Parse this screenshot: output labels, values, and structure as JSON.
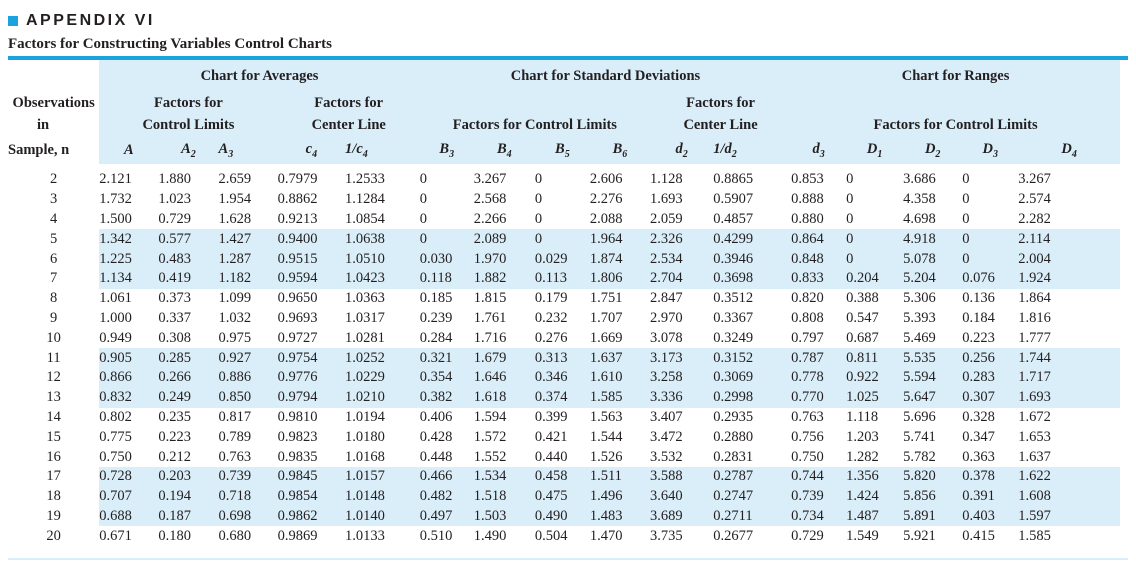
{
  "appendix": "APPENDIX VI",
  "title": "Factors for Constructing Variables Control Charts",
  "colors": {
    "accent": "#1aa3dc",
    "shade": "#d9eef9"
  },
  "groups": {
    "averages": "Chart for Averages",
    "std_devs": "Chart for Standard Deviations",
    "ranges": "Chart for Ranges"
  },
  "subgroups": {
    "obs_line1": "Observations",
    "obs_line2": "in",
    "avg_control_1": "Factors for",
    "avg_control_2": "Control Limits",
    "avg_center_1": "Factors for",
    "avg_center_2": "Center Line",
    "sd_control": "Factors for Control Limits",
    "sd_center_1": "Factors for",
    "sd_center_2": "Center Line",
    "r_control": "Factors for Control Limits"
  },
  "sample_label": "Sample, n",
  "symbols": {
    "A": "A",
    "A2": "A",
    "A3": "A",
    "c4": "c",
    "inv_c4": "1/c",
    "B3": "B",
    "B4": "B",
    "B5": "B",
    "B6": "B",
    "d2": "d",
    "inv_d2": "1/d",
    "d3": "d",
    "D1": "D",
    "D2": "D",
    "D3": "D",
    "D4": "D"
  },
  "symbol_subs": {
    "A2": "2",
    "A3": "3",
    "c4": "4",
    "inv_c4": "4",
    "B3": "3",
    "B4": "4",
    "B5": "5",
    "B6": "6",
    "d2": "2",
    "inv_d2": "2",
    "d3": "3",
    "D1": "1",
    "D2": "2",
    "D3": "3",
    "D4": "4"
  },
  "rows": [
    [
      "2",
      "2.121",
      "1.880",
      "2.659",
      "0.7979",
      "1.2533",
      "0",
      "3.267",
      "0",
      "2.606",
      "1.128",
      "0.8865",
      "0.853",
      "0",
      "3.686",
      "0",
      "3.267"
    ],
    [
      "3",
      "1.732",
      "1.023",
      "1.954",
      "0.8862",
      "1.1284",
      "0",
      "2.568",
      "0",
      "2.276",
      "1.693",
      "0.5907",
      "0.888",
      "0",
      "4.358",
      "0",
      "2.574"
    ],
    [
      "4",
      "1.500",
      "0.729",
      "1.628",
      "0.9213",
      "1.0854",
      "0",
      "2.266",
      "0",
      "2.088",
      "2.059",
      "0.4857",
      "0.880",
      "0",
      "4.698",
      "0",
      "2.282"
    ],
    [
      "5",
      "1.342",
      "0.577",
      "1.427",
      "0.9400",
      "1.0638",
      "0",
      "2.089",
      "0",
      "1.964",
      "2.326",
      "0.4299",
      "0.864",
      "0",
      "4.918",
      "0",
      "2.114"
    ],
    [
      "6",
      "1.225",
      "0.483",
      "1.287",
      "0.9515",
      "1.0510",
      "0.030",
      "1.970",
      "0.029",
      "1.874",
      "2.534",
      "0.3946",
      "0.848",
      "0",
      "5.078",
      "0",
      "2.004"
    ],
    [
      "7",
      "1.134",
      "0.419",
      "1.182",
      "0.9594",
      "1.0423",
      "0.118",
      "1.882",
      "0.113",
      "1.806",
      "2.704",
      "0.3698",
      "0.833",
      "0.204",
      "5.204",
      "0.076",
      "1.924"
    ],
    [
      "8",
      "1.061",
      "0.373",
      "1.099",
      "0.9650",
      "1.0363",
      "0.185",
      "1.815",
      "0.179",
      "1.751",
      "2.847",
      "0.3512",
      "0.820",
      "0.388",
      "5.306",
      "0.136",
      "1.864"
    ],
    [
      "9",
      "1.000",
      "0.337",
      "1.032",
      "0.9693",
      "1.0317",
      "0.239",
      "1.761",
      "0.232",
      "1.707",
      "2.970",
      "0.3367",
      "0.808",
      "0.547",
      "5.393",
      "0.184",
      "1.816"
    ],
    [
      "10",
      "0.949",
      "0.308",
      "0.975",
      "0.9727",
      "1.0281",
      "0.284",
      "1.716",
      "0.276",
      "1.669",
      "3.078",
      "0.3249",
      "0.797",
      "0.687",
      "5.469",
      "0.223",
      "1.777"
    ],
    [
      "11",
      "0.905",
      "0.285",
      "0.927",
      "0.9754",
      "1.0252",
      "0.321",
      "1.679",
      "0.313",
      "1.637",
      "3.173",
      "0.3152",
      "0.787",
      "0.811",
      "5.535",
      "0.256",
      "1.744"
    ],
    [
      "12",
      "0.866",
      "0.266",
      "0.886",
      "0.9776",
      "1.0229",
      "0.354",
      "1.646",
      "0.346",
      "1.610",
      "3.258",
      "0.3069",
      "0.778",
      "0.922",
      "5.594",
      "0.283",
      "1.717"
    ],
    [
      "13",
      "0.832",
      "0.249",
      "0.850",
      "0.9794",
      "1.0210",
      "0.382",
      "1.618",
      "0.374",
      "1.585",
      "3.336",
      "0.2998",
      "0.770",
      "1.025",
      "5.647",
      "0.307",
      "1.693"
    ],
    [
      "14",
      "0.802",
      "0.235",
      "0.817",
      "0.9810",
      "1.0194",
      "0.406",
      "1.594",
      "0.399",
      "1.563",
      "3.407",
      "0.2935",
      "0.763",
      "1.118",
      "5.696",
      "0.328",
      "1.672"
    ],
    [
      "15",
      "0.775",
      "0.223",
      "0.789",
      "0.9823",
      "1.0180",
      "0.428",
      "1.572",
      "0.421",
      "1.544",
      "3.472",
      "0.2880",
      "0.756",
      "1.203",
      "5.741",
      "0.347",
      "1.653"
    ],
    [
      "16",
      "0.750",
      "0.212",
      "0.763",
      "0.9835",
      "1.0168",
      "0.448",
      "1.552",
      "0.440",
      "1.526",
      "3.532",
      "0.2831",
      "0.750",
      "1.282",
      "5.782",
      "0.363",
      "1.637"
    ],
    [
      "17",
      "0.728",
      "0.203",
      "0.739",
      "0.9845",
      "1.0157",
      "0.466",
      "1.534",
      "0.458",
      "1.511",
      "3.588",
      "0.2787",
      "0.744",
      "1.356",
      "5.820",
      "0.378",
      "1.622"
    ],
    [
      "18",
      "0.707",
      "0.194",
      "0.718",
      "0.9854",
      "1.0148",
      "0.482",
      "1.518",
      "0.475",
      "1.496",
      "3.640",
      "0.2747",
      "0.739",
      "1.424",
      "5.856",
      "0.391",
      "1.608"
    ],
    [
      "19",
      "0.688",
      "0.187",
      "0.698",
      "0.9862",
      "1.0140",
      "0.497",
      "1.503",
      "0.490",
      "1.483",
      "3.689",
      "0.2711",
      "0.734",
      "1.487",
      "5.891",
      "0.403",
      "1.597"
    ],
    [
      "20",
      "0.671",
      "0.180",
      "0.680",
      "0.9869",
      "1.0133",
      "0.510",
      "1.490",
      "0.504",
      "1.470",
      "3.735",
      "0.2677",
      "0.729",
      "1.549",
      "5.921",
      "0.415",
      "1.585"
    ]
  ],
  "shaded_row_indices": [
    3,
    4,
    5,
    9,
    10,
    11,
    15,
    16,
    17
  ]
}
